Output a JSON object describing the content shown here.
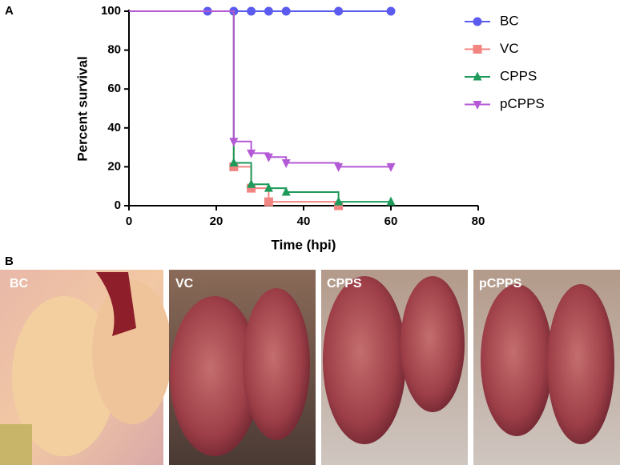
{
  "panel_a_label": "A",
  "panel_b_label": "B",
  "chart_data": {
    "type": "survival",
    "x_label": "Time (hpi)",
    "y_label": "Percent survival",
    "xlim": [
      0,
      80
    ],
    "ylim": [
      0,
      100
    ],
    "xticks": [
      0,
      20,
      40,
      60,
      80
    ],
    "yticks": [
      0,
      20,
      40,
      60,
      80,
      100
    ],
    "series": [
      {
        "name": "BC",
        "color": "#5b5bf0",
        "marker": "circle",
        "x": [
          0,
          18,
          24,
          28,
          32,
          36,
          48,
          60
        ],
        "values": [
          100,
          100,
          100,
          100,
          100,
          100,
          100,
          100
        ]
      },
      {
        "name": "VC",
        "color": "#f28482",
        "marker": "square",
        "x": [
          0,
          24,
          28,
          32,
          48
        ],
        "values": [
          100,
          20,
          9,
          2,
          0
        ]
      },
      {
        "name": "CPPS",
        "color": "#1e9a5a",
        "marker": "triangle-up",
        "x": [
          0,
          24,
          28,
          32,
          36,
          48,
          60
        ],
        "values": [
          100,
          22,
          11,
          9,
          7,
          2,
          2
        ]
      },
      {
        "name": "pCPPS",
        "color": "#b459d6",
        "marker": "triangle-down",
        "x": [
          0,
          24,
          28,
          32,
          36,
          48,
          60
        ],
        "values": [
          100,
          33,
          27,
          25,
          22,
          20,
          20
        ]
      }
    ]
  },
  "photos": [
    {
      "label": "BC"
    },
    {
      "label": "VC"
    },
    {
      "label": "CPPS"
    },
    {
      "label": "pCPPS"
    }
  ]
}
